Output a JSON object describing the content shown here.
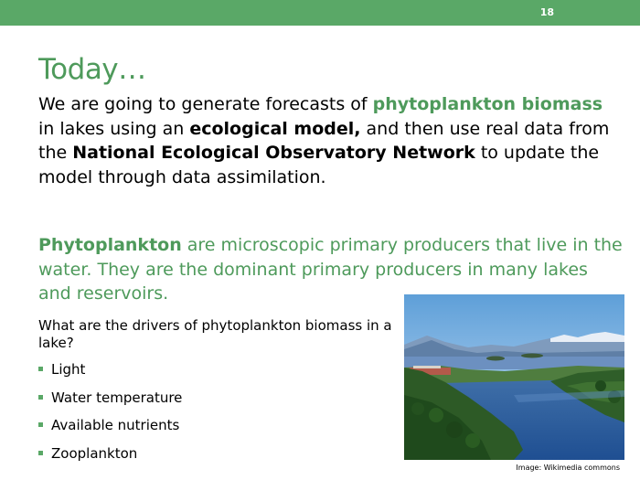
{
  "slide_number": "18",
  "title": "Today…",
  "intro": {
    "t1": "We are going to generate forecasts of ",
    "b1": "phytoplankton biomass",
    "t2": " in lakes using an ",
    "b2": "ecological model,",
    "t3": " and then use real data from the ",
    "b3": "National Ecological Observatory Network",
    "t4": " to update the model through data assimilation."
  },
  "definition": {
    "term": "Phytoplankton",
    "rest": " are microscopic primary producers that live in the water. They are the dominant primary producers in many lakes and reservoirs."
  },
  "question": "What are the drivers of phytoplankton biomass in a lake?",
  "bullets": [
    "Light",
    "Water temperature",
    "Available nutrients",
    "Zooplankton"
  ],
  "image_credit": "Image: Wikimedia commons",
  "colors": {
    "accent": "#5aa867",
    "text_green": "#4e9a5b"
  }
}
